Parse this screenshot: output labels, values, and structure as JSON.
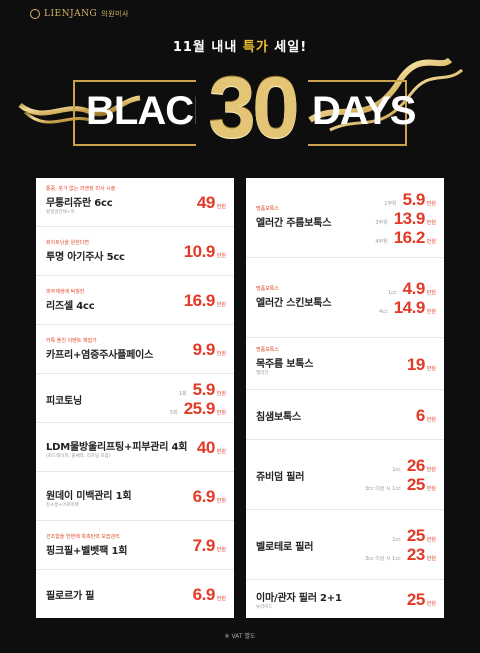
{
  "logo": {
    "name": "LIENJANG",
    "sub": "의원미사"
  },
  "headline": {
    "pre": "11월 내내 ",
    "highlight": "특가",
    "post": " 세일!"
  },
  "banner": {
    "left": "BLACK",
    "number": "30",
    "right": "DAYS"
  },
  "colors": {
    "accent": "#e23a26",
    "gold": "#d4b46a",
    "background": "#0e0e0e"
  },
  "left_items": [
    {
      "tag": "통증, 붓기 없는 리엔장 미사 시술",
      "name": "무통리쥬란 6cc",
      "sub": "앞얼굴전체+목",
      "prices": [
        {
          "label": "",
          "value": "49",
          "unit": "만원"
        }
      ]
    },
    {
      "tag": "화이트닝을 원한다면",
      "name": "투명 아기주사 5cc",
      "sub": "",
      "prices": [
        {
          "label": "",
          "value": "10.9",
          "unit": "만원"
        }
      ]
    },
    {
      "tag": "피부재생에 탁월한",
      "name": "리즈셀 4cc",
      "sub": "",
      "prices": [
        {
          "label": "",
          "value": "16.9",
          "unit": "만원"
        }
      ]
    },
    {
      "tag": "카톡 플친 이벤트 체험가",
      "name": "카프리+염증주사플페이스",
      "sub": "",
      "prices": [
        {
          "label": "",
          "value": "9.9",
          "unit": "만원"
        }
      ]
    },
    {
      "tag": "",
      "name": "피코토닝",
      "sub": "",
      "prices": [
        {
          "label": "1회",
          "value": "5.9",
          "unit": "만원"
        },
        {
          "label": "5회",
          "value": "25.9",
          "unit": "만원"
        }
      ]
    },
    {
      "tag": "",
      "name": "LDM물방울리프팅+피부관리 4회",
      "sub": "(로드레이저, 울쎄라, 리프팅 포함)",
      "prices": [
        {
          "label": "",
          "value": "40",
          "unit": "만원"
        }
      ]
    },
    {
      "tag": "",
      "name": "원데이 미백관리 1회",
      "sub": "진소름+아로마팩",
      "prices": [
        {
          "label": "",
          "value": "6.9",
          "unit": "만원"
        }
      ]
    },
    {
      "tag": "건조함을 한번에 촉촉탄력 보습관리",
      "name": "핑크필+벨벳팩 1회",
      "sub": "",
      "prices": [
        {
          "label": "",
          "value": "7.9",
          "unit": "만원"
        }
      ]
    },
    {
      "tag": "",
      "name": "필로르가 필",
      "sub": "",
      "prices": [
        {
          "label": "",
          "value": "6.9",
          "unit": "만원"
        }
      ]
    }
  ],
  "right_items": [
    {
      "tag": "명품보톡스",
      "name": "엘러간 주름보톡스",
      "sub": "",
      "prices": [
        {
          "label": "1부위",
          "value": "5.9",
          "unit": "만원"
        },
        {
          "label": "3부위",
          "value": "13.9",
          "unit": "만원"
        },
        {
          "label": "4부위",
          "value": "16.2",
          "unit": "만원"
        }
      ]
    },
    {
      "tag": "명품보톡스",
      "name": "엘러간 스킨보톡스",
      "sub": "",
      "prices": [
        {
          "label": "1cc",
          "value": "4.9",
          "unit": "만원"
        },
        {
          "label": "4cc",
          "value": "14.9",
          "unit": "만원"
        }
      ]
    },
    {
      "tag": "명품보톡스",
      "name": "목주름 보톡스",
      "sub": "엘러간",
      "prices": [
        {
          "label": "",
          "value": "19",
          "unit": "만원"
        }
      ]
    },
    {
      "tag": "",
      "name": "침샘보톡스",
      "sub": "",
      "prices": [
        {
          "label": "",
          "value": "6",
          "unit": "만원"
        }
      ]
    },
    {
      "tag": "",
      "name": "쥬비덤 필러",
      "sub": "",
      "prices": [
        {
          "label": "1cc",
          "value": "26",
          "unit": "만원"
        },
        {
          "label": "3cc 이상 시 1cc",
          "value": "25",
          "unit": "만원"
        }
      ]
    },
    {
      "tag": "",
      "name": "벨로테로 필러",
      "sub": "",
      "prices": [
        {
          "label": "1cc",
          "value": "25",
          "unit": "만원"
        },
        {
          "label": "3cc 이상 시 1cc",
          "value": "23",
          "unit": "만원"
        }
      ]
    },
    {
      "tag": "",
      "name": "이마/관자 필러 2+1",
      "sub": "뉴라미드",
      "prices": [
        {
          "label": "",
          "value": "25",
          "unit": "만원"
        }
      ]
    }
  ],
  "footer": "※ VAT 별도"
}
